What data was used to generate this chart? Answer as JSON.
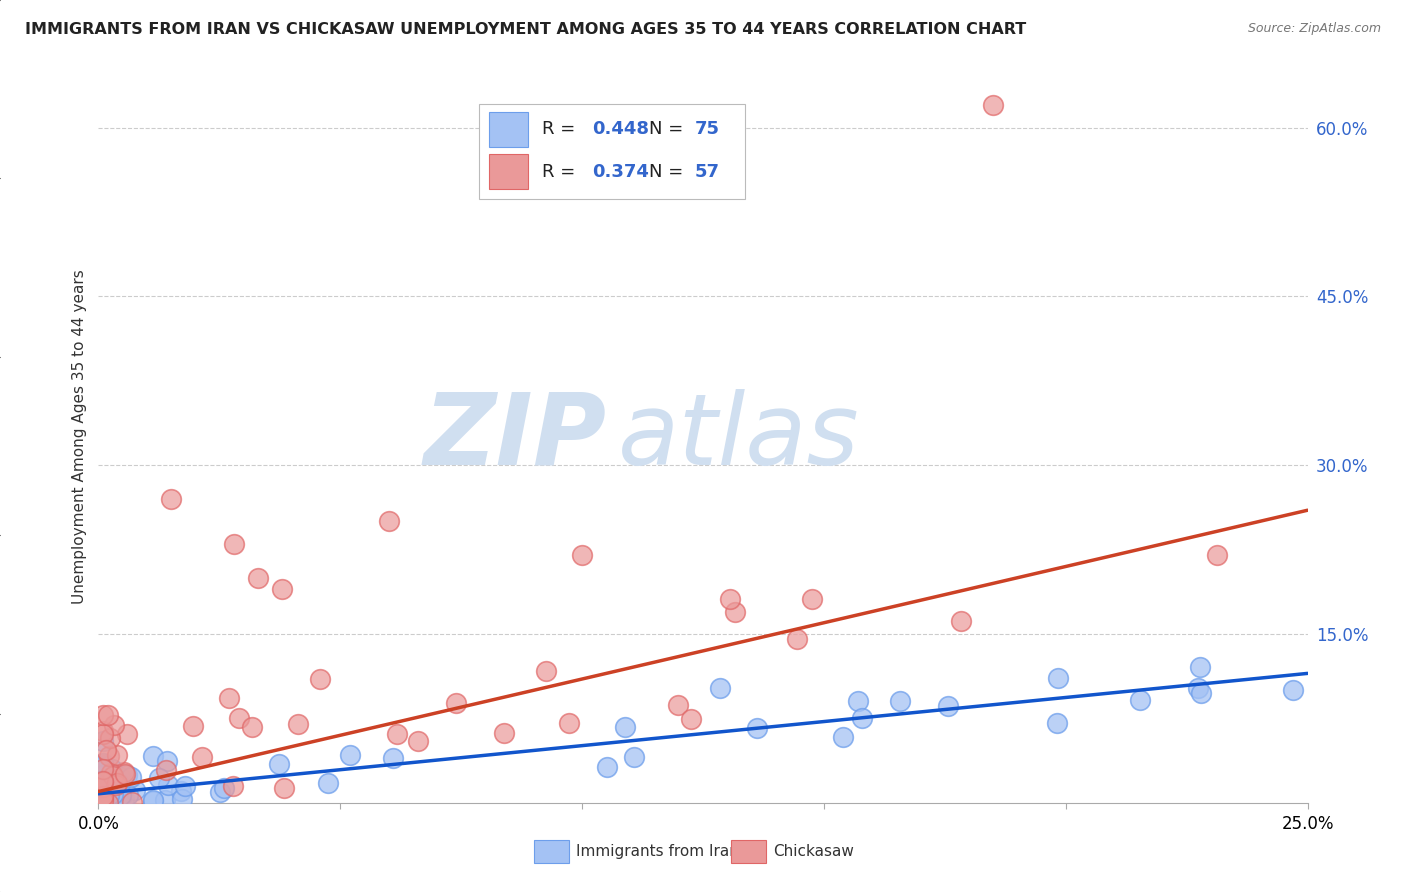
{
  "title": "IMMIGRANTS FROM IRAN VS CHICKASAW UNEMPLOYMENT AMONG AGES 35 TO 44 YEARS CORRELATION CHART",
  "source": "Source: ZipAtlas.com",
  "ylabel": "Unemployment Among Ages 35 to 44 years",
  "xlim": [
    0.0,
    0.25
  ],
  "ylim": [
    0.0,
    0.65
  ],
  "xticks": [
    0.0,
    0.05,
    0.1,
    0.15,
    0.2,
    0.25
  ],
  "xtick_labels": [
    "0.0%",
    "",
    "",
    "",
    "",
    "25.0%"
  ],
  "yticks_right": [
    0.15,
    0.3,
    0.45,
    0.6
  ],
  "ytick_labels_right": [
    "15.0%",
    "30.0%",
    "45.0%",
    "60.0%"
  ],
  "series1_name": "Immigrants from Iran",
  "series1_color": "#a4c2f4",
  "series1_edge_color": "#6d9eeb",
  "series1_line_color": "#1155cc",
  "series1_R": "0.448",
  "series1_N": "75",
  "series2_name": "Chickasaw",
  "series2_color": "#ea9999",
  "series2_edge_color": "#e06666",
  "series2_line_color": "#cc4125",
  "series2_R": "0.374",
  "series2_N": "57",
  "background_color": "#ffffff",
  "grid_color": "#cccccc",
  "title_fontsize": 11.5,
  "legend_color": "#3366cc",
  "watermark_color": "#d0dff0",
  "trend1_x0": 0.0,
  "trend1_y0": 0.008,
  "trend1_x1": 0.25,
  "trend1_y1": 0.115,
  "trend2_x0": 0.0,
  "trend2_y0": 0.01,
  "trend2_x1": 0.25,
  "trend2_y1": 0.26
}
